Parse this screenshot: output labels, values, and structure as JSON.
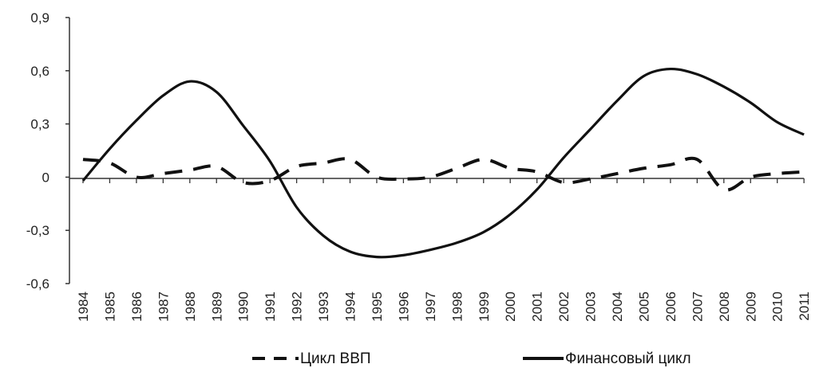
{
  "chart_data": {
    "type": "line",
    "x": [
      "1984",
      "1985",
      "1986",
      "1987",
      "1988",
      "1989",
      "1990",
      "1991",
      "1992",
      "1993",
      "1994",
      "1995",
      "1996",
      "1997",
      "1998",
      "1999",
      "2000",
      "2001",
      "2002",
      "2003",
      "2004",
      "2005",
      "2006",
      "2007",
      "2008",
      "2009",
      "2010",
      "2011"
    ],
    "y_ticks": [
      "0,9",
      "0,6",
      "0,3",
      "0",
      "-0,3",
      "-0,6"
    ],
    "ylim": [
      -0.6,
      0.9
    ],
    "series": [
      {
        "name": "Цикл ВВП",
        "style": "dashed",
        "values": [
          0.1,
          0.08,
          0.0,
          0.02,
          0.04,
          0.06,
          -0.03,
          -0.02,
          0.06,
          0.08,
          0.1,
          0.0,
          -0.01,
          0.0,
          0.05,
          0.1,
          0.05,
          0.03,
          -0.03,
          -0.01,
          0.02,
          0.05,
          0.07,
          0.1,
          -0.07,
          0.0,
          0.02,
          0.03
        ]
      },
      {
        "name": "Финансовый цикл",
        "style": "solid",
        "values": [
          -0.02,
          0.16,
          0.32,
          0.46,
          0.54,
          0.48,
          0.29,
          0.09,
          -0.17,
          -0.33,
          -0.42,
          -0.45,
          -0.44,
          -0.41,
          -0.37,
          -0.31,
          -0.21,
          -0.07,
          0.11,
          0.27,
          0.43,
          0.57,
          0.61,
          0.58,
          0.51,
          0.42,
          0.31,
          0.24
        ]
      }
    ],
    "legend_position": "bottom",
    "grid": false
  },
  "colors": {
    "line": "#111111",
    "axis": "#333333",
    "text": "#222222"
  }
}
